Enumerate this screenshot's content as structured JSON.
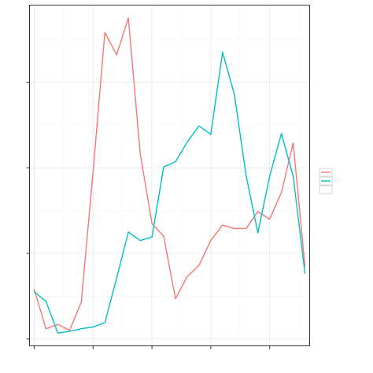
{
  "chart_data": {
    "type": "line",
    "title": "",
    "xlabel": "",
    "ylabel": "",
    "x": [
      1,
      2,
      3,
      4,
      5,
      6,
      7,
      8,
      9,
      10,
      11,
      12,
      13,
      14,
      15,
      16,
      17,
      18,
      19,
      20,
      21,
      22,
      23,
      24
    ],
    "xlim": [
      0.6,
      24.4
    ],
    "ylim": [
      -0.08,
      3.9
    ],
    "x_ticks": [
      1,
      6,
      11,
      16,
      21
    ],
    "y_ticks": [
      0,
      1,
      2,
      3
    ],
    "grid": true,
    "legend_position": "right",
    "series": [
      {
        "color": "#F8766D",
        "values": [
          0.58,
          0.12,
          0.17,
          0.1,
          0.43,
          1.95,
          3.58,
          3.32,
          3.75,
          2.17,
          1.35,
          1.2,
          0.47,
          0.73,
          0.86,
          1.15,
          1.33,
          1.29,
          1.29,
          1.49,
          1.4,
          1.71,
          2.29,
          0.85
        ]
      },
      {
        "color": "#00BFC4",
        "values": [
          0.55,
          0.44,
          0.07,
          0.09,
          0.12,
          0.14,
          0.19,
          0.71,
          1.25,
          1.15,
          1.19,
          2.01,
          2.07,
          2.3,
          2.49,
          2.39,
          3.35,
          2.86,
          1.91,
          1.24,
          1.9,
          2.4,
          1.9,
          0.77
        ]
      }
    ]
  }
}
